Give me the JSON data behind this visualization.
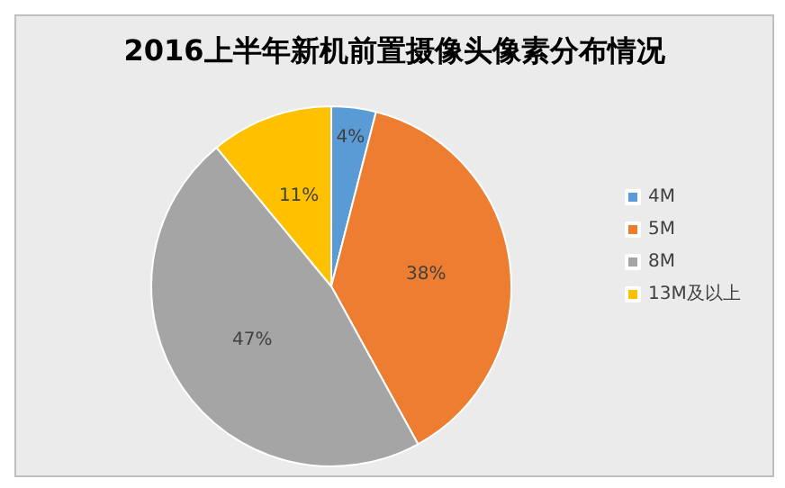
{
  "chart_data": {
    "type": "pie",
    "title": "2016上半年新机前置摄像头像素分布情况",
    "categories": [
      "4M",
      "5M",
      "8M",
      "13M及以上"
    ],
    "values": [
      4,
      38,
      47,
      11
    ],
    "colors": [
      "#5b9bd5",
      "#ed7d31",
      "#a5a5a5",
      "#ffc000"
    ],
    "value_labels": [
      "4%",
      "38%",
      "47%",
      "11%"
    ],
    "legend": "right"
  }
}
